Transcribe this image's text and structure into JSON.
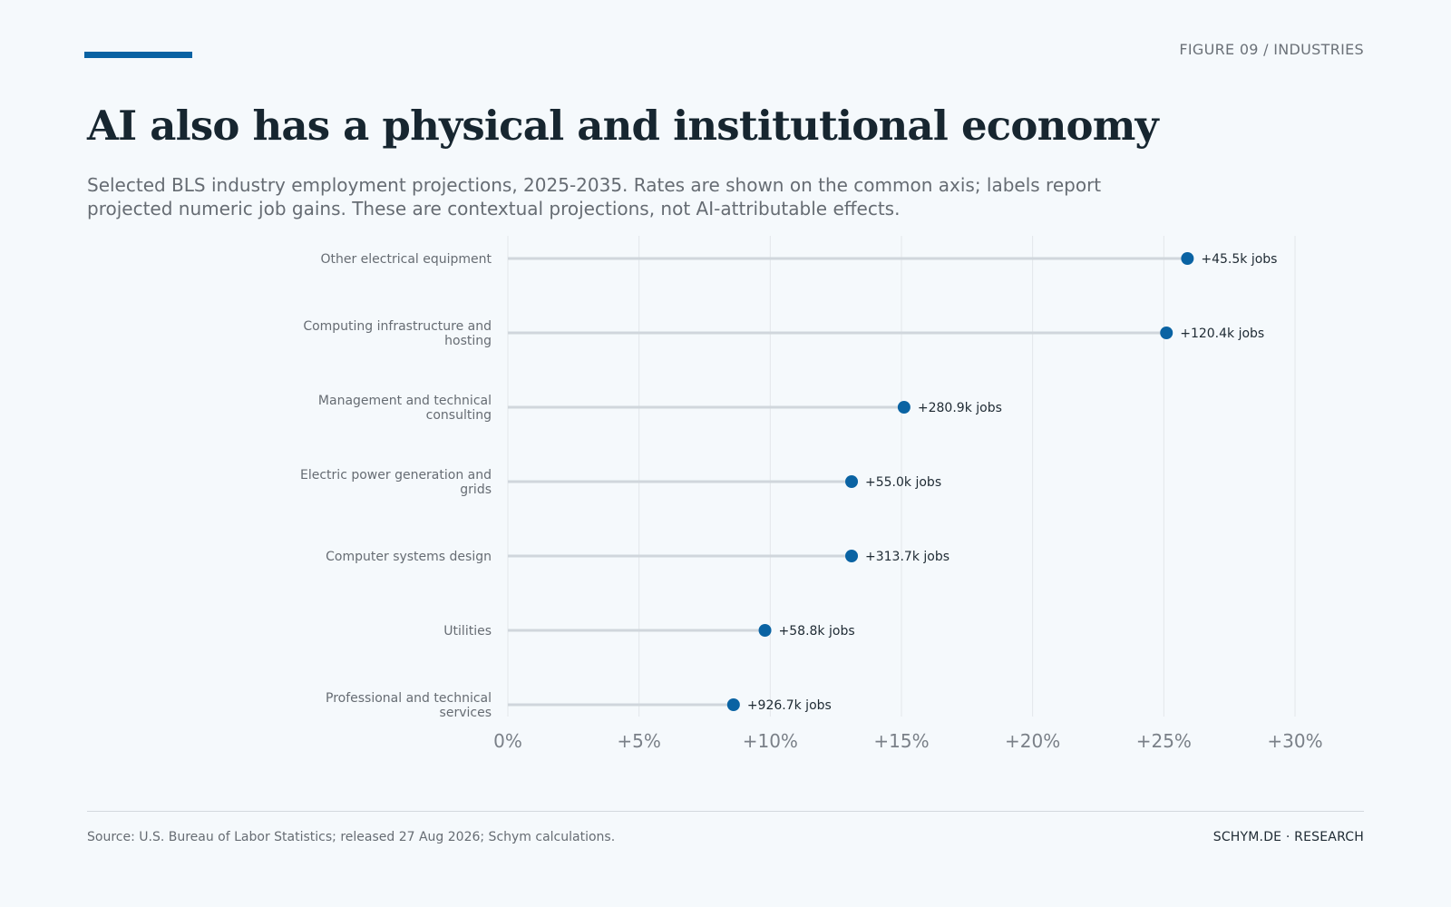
{
  "header": {
    "figure_label": "FIGURE 09 / INDUSTRIES",
    "title": "AI also has a physical and institutional economy",
    "subtitle": "Selected BLS industry employment projections, 2025-2035. Rates are shown on the common axis; labels report projected numeric job gains. These are contextual projections, not AI-attributable effects."
  },
  "footer": {
    "source": "Source: U.S. Bureau of Labor Statistics; released 27 Aug 2026; Schym calculations.",
    "brand": "SCHYM.DE · RESEARCH"
  },
  "colors": {
    "accent": "#0a63a3",
    "dot": "#0a63a3",
    "stem": "#d0d6dc",
    "grid": "#e2e6ea",
    "title": "#172630",
    "muted": "#666c73"
  },
  "chart_data": {
    "type": "lollipop",
    "title": "AI also has a physical and institutional economy",
    "xlabel": "",
    "ylabel": "",
    "x_unit": "percent",
    "xlim": [
      0,
      30
    ],
    "xticks": [
      0,
      5,
      10,
      15,
      20,
      25,
      30
    ],
    "xtick_labels": [
      "0%",
      "+5%",
      "+10%",
      "+15%",
      "+20%",
      "+25%",
      "+30%"
    ],
    "grid": "vertical",
    "categories": [
      {
        "label_lines": [
          "Other electrical equipment"
        ],
        "value": 25.9,
        "data_label": "+45.5k jobs"
      },
      {
        "label_lines": [
          "Computing infrastructure and",
          "hosting"
        ],
        "value": 25.1,
        "data_label": "+120.4k jobs"
      },
      {
        "label_lines": [
          "Management and technical",
          "consulting"
        ],
        "value": 15.1,
        "data_label": "+280.9k jobs"
      },
      {
        "label_lines": [
          "Electric power generation and",
          "grids"
        ],
        "value": 13.1,
        "data_label": "+55.0k jobs"
      },
      {
        "label_lines": [
          "Computer systems design"
        ],
        "value": 13.1,
        "data_label": "+313.7k jobs"
      },
      {
        "label_lines": [
          "Utilities"
        ],
        "value": 9.8,
        "data_label": "+58.8k jobs"
      },
      {
        "label_lines": [
          "Professional and technical",
          "services"
        ],
        "value": 8.6,
        "data_label": "+926.7k jobs"
      }
    ]
  }
}
